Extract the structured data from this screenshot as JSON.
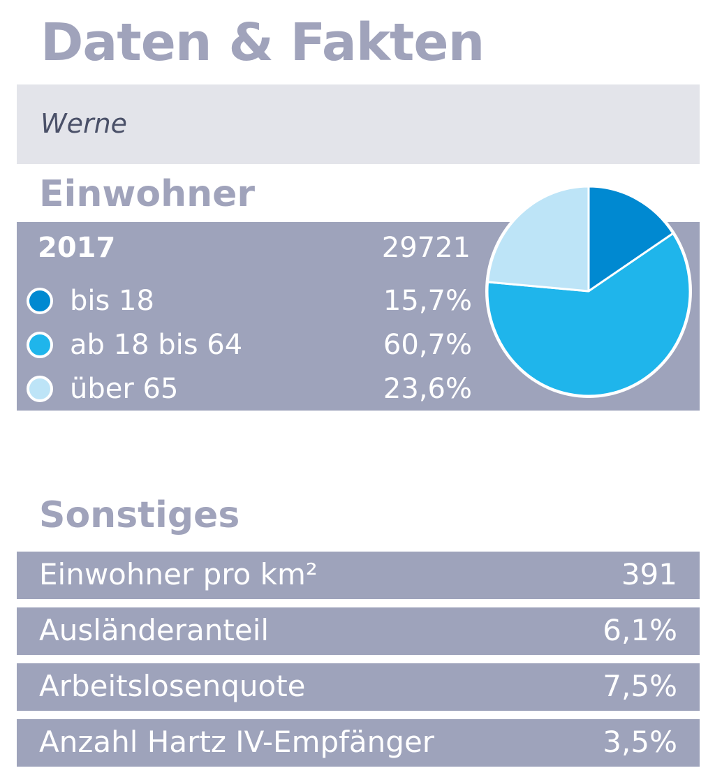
{
  "title": "Daten & Fakten",
  "location": "Werne",
  "population": {
    "heading": "Einwohner",
    "year": "2017",
    "total": "29721",
    "groups": [
      {
        "label": "bis 18",
        "value_text": "15,7%",
        "color": "#0089d1"
      },
      {
        "label": "ab 18 bis 64",
        "value_text": "60,7%",
        "color": "#1fb5eb"
      },
      {
        "label": "über 65",
        "value_text": "23,6%",
        "color": "#bde4f7"
      }
    ]
  },
  "chart_data": {
    "type": "pie",
    "title": "Einwohner 2017",
    "categories": [
      "bis 18",
      "ab 18 bis 64",
      "über 65"
    ],
    "values": [
      15.7,
      60.7,
      23.6
    ],
    "colors": [
      "#0089d1",
      "#1fb5eb",
      "#bde4f7"
    ],
    "total": 29721
  },
  "misc": {
    "heading": "Sonstiges",
    "rows": [
      {
        "label": "Einwohner pro km²",
        "value": "391"
      },
      {
        "label": "Ausländeranteil",
        "value": "6,1%"
      },
      {
        "label": "Arbeitslosenquote",
        "value": "7,5%"
      },
      {
        "label": "Anzahl Hartz IV-Empfänger",
        "value": "3,5%"
      }
    ]
  }
}
